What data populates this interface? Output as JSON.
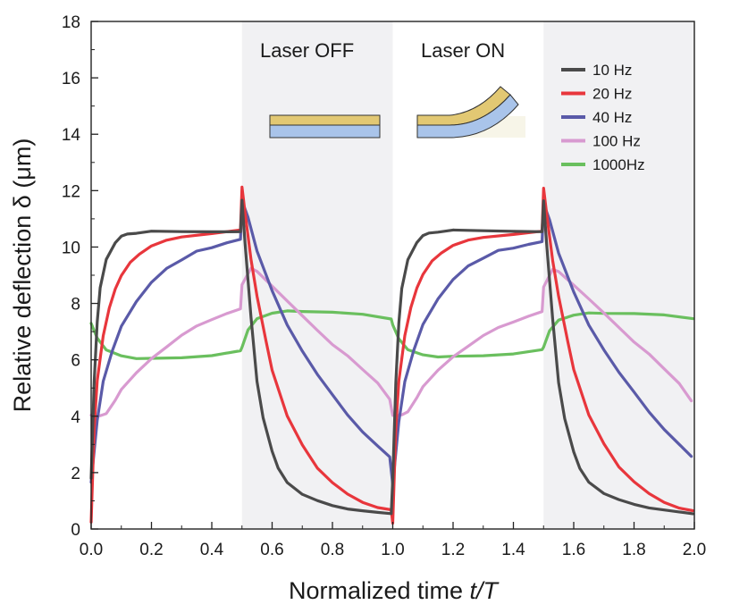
{
  "chart_data": {
    "type": "line",
    "xlabel_prefix": "Normalized time ",
    "xlabel_var": "t/T",
    "ylabel": "Relative deflection δ (μm)",
    "xlim": [
      0,
      2
    ],
    "ylim": [
      0,
      18
    ],
    "xticks": [
      "0.0",
      "0.2",
      "0.4",
      "0.6",
      "0.8",
      "1.0",
      "1.2",
      "1.4",
      "1.6",
      "1.8",
      "2.0"
    ],
    "yticks": [
      "0",
      "2",
      "4",
      "6",
      "8",
      "10",
      "12",
      "14",
      "16",
      "18"
    ],
    "shaded_regions": [
      [
        0.5,
        1.0
      ],
      [
        1.5,
        2.0
      ]
    ],
    "annotations": [
      "Laser OFF",
      "Laser ON"
    ],
    "series": [
      {
        "name": "10 Hz",
        "color": "#4a4a4a",
        "x": [
          0,
          0.01,
          0.02,
          0.03,
          0.05,
          0.08,
          0.1,
          0.12,
          0.15,
          0.2,
          0.3,
          0.4,
          0.495,
          0.5,
          0.51,
          0.53,
          0.55,
          0.57,
          0.6,
          0.62,
          0.65,
          0.7,
          0.75,
          0.8,
          0.85,
          0.9,
          0.95,
          0.995
        ],
        "y": [
          1.8,
          5.2,
          7.3,
          8.5,
          9.5,
          10.1,
          10.35,
          10.45,
          10.5,
          10.6,
          10.6,
          10.6,
          10.6,
          11.7,
          10.2,
          7.5,
          5.2,
          3.9,
          2.7,
          2.1,
          1.6,
          1.2,
          1.0,
          0.85,
          0.75,
          0.7,
          0.65,
          0.6
        ]
      },
      {
        "name": "20 Hz",
        "color": "#e8363c",
        "x": [
          0,
          0.01,
          0.02,
          0.04,
          0.06,
          0.08,
          0.1,
          0.13,
          0.16,
          0.2,
          0.25,
          0.3,
          0.4,
          0.495,
          0.5,
          0.51,
          0.53,
          0.55,
          0.58,
          0.6,
          0.65,
          0.7,
          0.75,
          0.8,
          0.85,
          0.9,
          0.95,
          0.995
        ],
        "y": [
          0.2,
          3.5,
          5.2,
          6.8,
          7.8,
          8.5,
          9.0,
          9.5,
          9.8,
          10.1,
          10.3,
          10.4,
          10.5,
          10.6,
          12.1,
          11.2,
          9.5,
          8.2,
          6.6,
          5.6,
          4.0,
          3.0,
          2.2,
          1.7,
          1.3,
          1.0,
          0.8,
          0.7
        ]
      },
      {
        "name": "40 Hz",
        "color": "#5a5aa8",
        "x": [
          0,
          0.02,
          0.04,
          0.07,
          0.1,
          0.15,
          0.2,
          0.25,
          0.3,
          0.35,
          0.4,
          0.45,
          0.495,
          0.5,
          0.52,
          0.55,
          0.6,
          0.65,
          0.7,
          0.75,
          0.8,
          0.85,
          0.9,
          0.95,
          0.99
        ],
        "y": [
          1.6,
          3.8,
          5.2,
          6.3,
          7.2,
          8.1,
          8.8,
          9.3,
          9.6,
          9.9,
          10.0,
          10.15,
          10.25,
          11.6,
          11.0,
          9.8,
          8.4,
          7.2,
          6.3,
          5.5,
          4.8,
          4.1,
          3.5,
          3.0,
          2.6
        ]
      },
      {
        "name": "100 Hz",
        "color": "#d89ad0",
        "x": [
          0,
          0.03,
          0.05,
          0.08,
          0.1,
          0.15,
          0.2,
          0.25,
          0.3,
          0.35,
          0.4,
          0.45,
          0.495,
          0.5,
          0.53,
          0.55,
          0.6,
          0.65,
          0.7,
          0.75,
          0.8,
          0.85,
          0.9,
          0.95,
          0.99
        ],
        "y": [
          4.0,
          4.0,
          4.1,
          4.6,
          5.0,
          5.6,
          6.1,
          6.5,
          6.9,
          7.2,
          7.4,
          7.6,
          7.75,
          8.6,
          9.2,
          9.1,
          8.6,
          8.1,
          7.6,
          7.1,
          6.6,
          6.2,
          5.7,
          5.2,
          4.6
        ]
      },
      {
        "name": "1000Hz",
        "color": "#6abf5e",
        "x": [
          0,
          0.02,
          0.05,
          0.1,
          0.15,
          0.2,
          0.3,
          0.4,
          0.495,
          0.5,
          0.52,
          0.55,
          0.6,
          0.65,
          0.7,
          0.8,
          0.9,
          0.995
        ],
        "y": [
          7.3,
          6.8,
          6.4,
          6.2,
          6.1,
          6.1,
          6.1,
          6.15,
          6.3,
          6.4,
          7.0,
          7.4,
          7.6,
          7.7,
          7.7,
          7.7,
          7.65,
          7.5
        ]
      }
    ]
  }
}
